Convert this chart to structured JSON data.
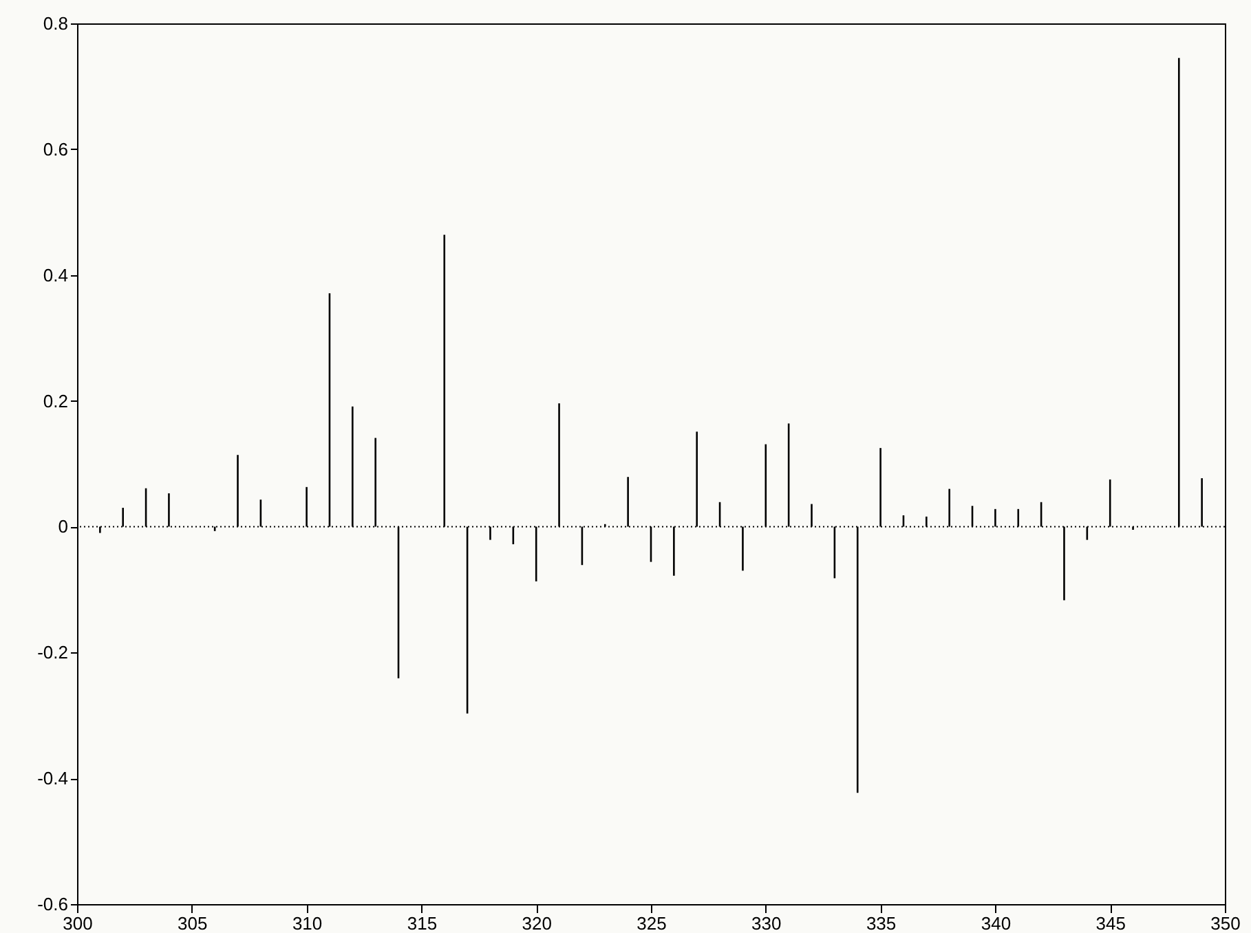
{
  "chart_data": {
    "type": "bar",
    "grid": false,
    "x": [
      301,
      302,
      303,
      304,
      306,
      307,
      308,
      310,
      311,
      312,
      313,
      314,
      316,
      317,
      318,
      319,
      320,
      321,
      322,
      323,
      324,
      325,
      326,
      327,
      328,
      329,
      330,
      331,
      332,
      333,
      334,
      335,
      336,
      337,
      338,
      339,
      340,
      341,
      342,
      343,
      344,
      345,
      346,
      348,
      349
    ],
    "series": [
      {
        "color": "#000000",
        "values": [
          -0.01,
          0.03,
          0.061,
          0.053,
          -0.007,
          0.114,
          0.043,
          0.063,
          0.371,
          0.191,
          0.141,
          -0.241,
          0.464,
          -0.297,
          -0.021,
          -0.028,
          -0.087,
          0.196,
          -0.061,
          0.004,
          0.079,
          -0.056,
          -0.078,
          0.151,
          0.039,
          -0.07,
          0.131,
          0.164,
          0.036,
          -0.082,
          -0.423,
          0.125,
          0.018,
          0.016,
          0.06,
          0.033,
          0.028,
          0.028,
          0.039,
          -0.117,
          -0.021,
          0.075,
          -0.005,
          0.745,
          0.077
        ]
      }
    ],
    "xlim": [
      300,
      350
    ],
    "xticks": [
      300,
      305,
      310,
      315,
      320,
      325,
      330,
      335,
      340,
      345,
      350
    ],
    "ylim": [
      -0.6,
      0.8
    ],
    "yticks": [
      -0.6,
      -0.4,
      -0.2,
      {
        "value": 0,
        "label": "0"
      },
      0.2,
      0.4,
      0.6,
      0.8
    ],
    "ref_lines": [
      {
        "axis": "y",
        "value": 0,
        "color": "#000000",
        "line_style": "dotted"
      }
    ]
  }
}
